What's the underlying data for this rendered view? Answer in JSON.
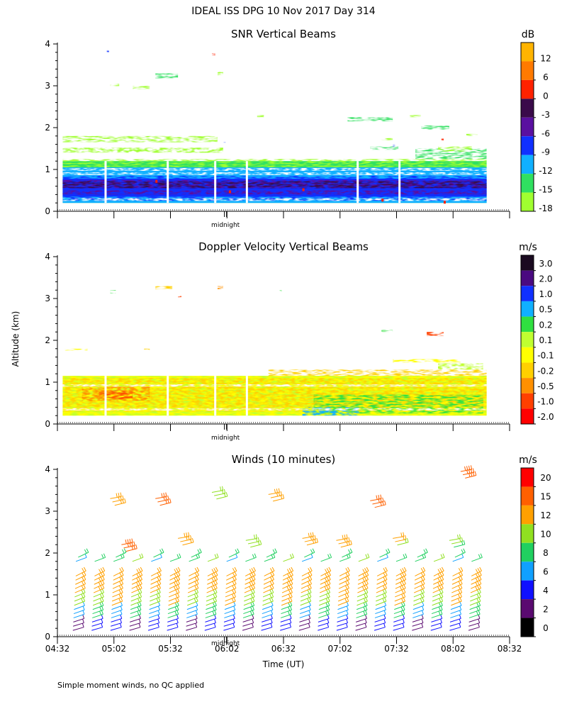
{
  "header": {
    "title": "IDEAL ISS DPG  10 Nov 2017 Day 314"
  },
  "footer": {
    "note": "Simple moment winds, no QC applied"
  },
  "shared": {
    "ylabel": "Altitude (km)",
    "midnight_label": "midnight",
    "xlabel": "Time (UT)",
    "x_ticks": [
      "04:32",
      "05:02",
      "05:32",
      "06:02",
      "06:32",
      "07:02",
      "07:32",
      "08:02",
      "08:32"
    ]
  },
  "chart_data": [
    {
      "id": "snr",
      "type": "heatmap",
      "title": "SNR Vertical Beams",
      "units": "dB",
      "y_ticks": [
        "0",
        "1",
        "2",
        "3",
        "4"
      ],
      "ylim": [
        0,
        4
      ],
      "xlim_hours": [
        4.533,
        8.533
      ],
      "colorbar": {
        "labels": [
          "12",
          "6",
          "0",
          "-3",
          "-6",
          "-9",
          "-12",
          "-15",
          "-18"
        ],
        "colors": [
          "#ffb400",
          "#ff7a00",
          "#ff2200",
          "#3a0a4a",
          "#5a10a0",
          "#1030ff",
          "#10b0ff",
          "#30e060",
          "#a0ff30"
        ]
      },
      "features": [
        {
          "label": "boundary layer strong",
          "t0": 4.58,
          "t1": 8.33,
          "z0": 0.2,
          "z1": 0.85,
          "snr_db": -8
        },
        {
          "label": "layer top",
          "t0": 4.58,
          "t1": 8.33,
          "z0": 0.85,
          "z1": 1.2,
          "snr_db": -14
        },
        {
          "label": "residual layer",
          "t0": 4.58,
          "t1": 5.9,
          "z0": 1.6,
          "z1": 1.8,
          "snr_db": -16
        }
      ]
    },
    {
      "id": "doppler",
      "type": "heatmap",
      "title": "Doppler Velocity Vertical Beams",
      "units": "m/s",
      "y_ticks": [
        "0",
        "1",
        "2",
        "3",
        "4"
      ],
      "ylim": [
        0,
        4
      ],
      "colorbar": {
        "labels": [
          "3.0",
          "2.0",
          "1.0",
          "0.5",
          "0.2",
          "0.1",
          "-0.1",
          "-0.2",
          "-0.5",
          "-1.0",
          "-2.0"
        ],
        "colors": [
          "#1a0a20",
          "#4a0a80",
          "#1030ff",
          "#10b0ff",
          "#30e040",
          "#c0ff30",
          "#ffff00",
          "#ffd000",
          "#ff9000",
          "#ff4000",
          "#ff0000"
        ]
      },
      "features": [
        {
          "label": "boundary layer",
          "t0": 4.58,
          "t1": 8.33,
          "z0": 0.2,
          "z1": 1.2,
          "w_ms": -0.1
        }
      ]
    },
    {
      "id": "winds",
      "type": "scatter",
      "title": "Winds (10 minutes)",
      "units": "m/s",
      "y_ticks": [
        "0",
        "1",
        "2",
        "3",
        "4"
      ],
      "ylim": [
        0,
        4
      ],
      "colorbar": {
        "labels": [
          "20",
          "15",
          "12",
          "10",
          "8",
          "6",
          "4",
          "2",
          "0"
        ],
        "colors": [
          "#ff0000",
          "#ff6000",
          "#ffa000",
          "#90e020",
          "#20d060",
          "#10a0ff",
          "#1010ff",
          "#5a0a70",
          "#000000"
        ]
      },
      "barb_columns_hours": [
        4.667,
        4.833,
        5.0,
        5.167,
        5.333,
        5.5,
        5.667,
        5.833,
        6.0,
        6.167,
        6.333,
        6.5,
        6.667,
        6.833,
        7.0,
        7.167,
        7.333,
        7.5,
        7.667,
        7.833,
        8.0,
        8.167
      ],
      "upper_barbs": [
        {
          "t": 5.1,
          "z": 2.2,
          "speed": 18
        },
        {
          "t": 5.6,
          "z": 2.35,
          "speed": 13
        },
        {
          "t": 6.2,
          "z": 2.3,
          "speed": 11
        },
        {
          "t": 6.7,
          "z": 2.35,
          "speed": 14
        },
        {
          "t": 7.0,
          "z": 2.3,
          "speed": 14
        },
        {
          "t": 7.5,
          "z": 2.35,
          "speed": 12
        },
        {
          "t": 8.0,
          "z": 2.3,
          "speed": 10
        },
        {
          "t": 5.0,
          "z": 3.3,
          "speed": 14
        },
        {
          "t": 5.4,
          "z": 3.3,
          "speed": 16
        },
        {
          "t": 5.9,
          "z": 3.45,
          "speed": 11
        },
        {
          "t": 6.4,
          "z": 3.4,
          "speed": 13
        },
        {
          "t": 7.3,
          "z": 3.25,
          "speed": 16
        },
        {
          "t": 8.1,
          "z": 3.95,
          "speed": 19
        }
      ]
    }
  ]
}
